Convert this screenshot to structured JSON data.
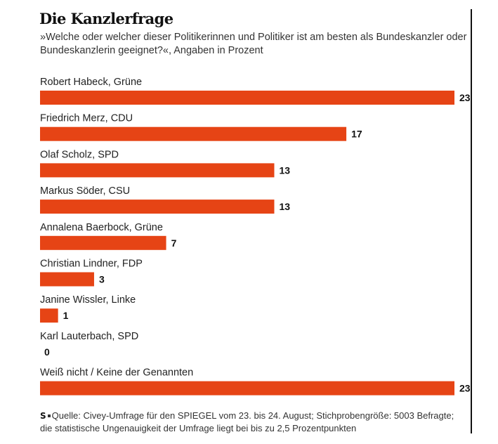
{
  "header": {
    "title": "Die Kanzlerfrage",
    "subtitle": "»Welche oder welcher dieser Politikerinnen und Politiker ist am besten als Bundeskanzler oder Bundeskanzlerin geeignet?«, Angaben in Prozent"
  },
  "footer": {
    "logo": "S",
    "source": "Quelle: Civey-Umfrage für den SPIEGEL vom 23. bis 24. August; Stichprobengröße: 5003 Befragte; die statistische Ungenauigkeit der Umfrage liegt bei bis zu 2,5 Prozentpunkten"
  },
  "colors": {
    "bar": "#e64415",
    "text": "#222222",
    "value": "#111111"
  },
  "chart_data": {
    "type": "bar",
    "orientation": "horizontal",
    "title": "Die Kanzlerfrage",
    "subtitle": "»Welche oder welcher dieser Politikerinnen und Politiker ist am besten als Bundeskanzler oder Bundeskanzlerin geeignet?«, Angaben in Prozent",
    "xlabel": "",
    "ylabel": "",
    "unit": "Prozent",
    "xlim": [
      0,
      23
    ],
    "grid": false,
    "legend": "none",
    "categories": [
      "Robert Habeck, Grüne",
      "Friedrich Merz, CDU",
      "Olaf Scholz, SPD",
      "Markus Söder, CSU",
      "Annalena Baerbock, Grüne",
      "Christian Lindner, FDP",
      "Janine Wissler, Linke",
      "Karl Lauterbach, SPD",
      "Weiß nicht / Keine der Genannten"
    ],
    "values": [
      23,
      17,
      13,
      13,
      7,
      3,
      1,
      0,
      23
    ]
  }
}
